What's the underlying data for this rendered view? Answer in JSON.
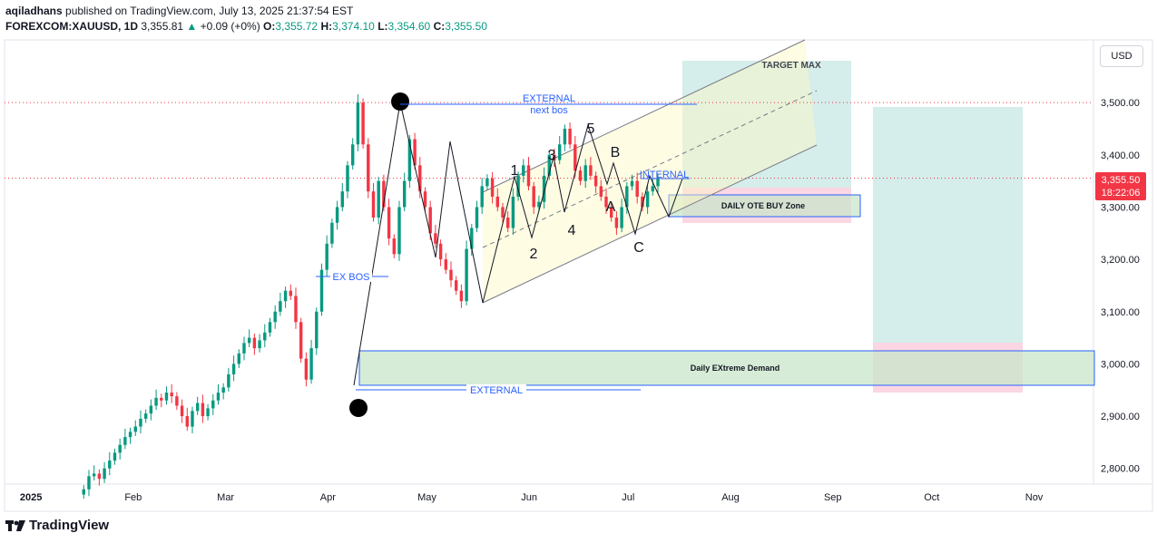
{
  "header": {
    "line1_user": "aqiladhans",
    "line1_rest": " published on TradingView.com, July 13, 2025 21:37:54 EST",
    "symbol": "FOREXCOM:XAUUSD, 1D",
    "price": "3,355.81",
    "change": "+0.09 (+0%)",
    "o_label": "O:",
    "o_value": "3,355.72",
    "h_label": "H:",
    "h_value": "3,374.10",
    "l_label": "L:",
    "l_value": "3,354.60",
    "c_label": "C:",
    "c_value": "3,355.50"
  },
  "currency_button": "USD",
  "price_badge": {
    "value": "3,355.50",
    "countdown": "18:22:06"
  },
  "footer": {
    "brand": "TradingView"
  },
  "colors": {
    "up": "#089981",
    "down": "#f23645",
    "badge": "#f23645",
    "blue": "#2962ff"
  },
  "chart_data": {
    "type": "candlestick",
    "title": "",
    "y_ticks": [
      "3,500.00",
      "3,400.00",
      "3,300.00",
      "3,200.00",
      "3,100.00",
      "3,000.00",
      "2,900.00",
      "2,800.00"
    ],
    "y_tick_values": [
      3500,
      3400,
      3300,
      3200,
      3100,
      3000,
      2900,
      2800
    ],
    "ylim": [
      2770,
      3620
    ],
    "x_ticks": [
      {
        "label": "2025",
        "day": 0
      },
      {
        "label": "Feb",
        "day": 31
      },
      {
        "label": "Mar",
        "day": 59
      },
      {
        "label": "Apr",
        "day": 90
      },
      {
        "label": "May",
        "day": 120
      },
      {
        "label": "Jun",
        "day": 151
      },
      {
        "label": "Jul",
        "day": 181
      },
      {
        "label": "Aug",
        "day": 212
      },
      {
        "label": "Sep",
        "day": 243
      },
      {
        "label": "Oct",
        "day": 273
      },
      {
        "label": "Nov",
        "day": 304
      }
    ],
    "xlim_days": [
      -8,
      322
    ],
    "closes": [
      2760,
      2785,
      2790,
      2780,
      2800,
      2815,
      2830,
      2845,
      2860,
      2870,
      2880,
      2895,
      2905,
      2920,
      2935,
      2930,
      2945,
      2938,
      2920,
      2900,
      2880,
      2910,
      2925,
      2900,
      2915,
      2930,
      2945,
      2955,
      2980,
      3000,
      3020,
      3040,
      3050,
      3030,
      3045,
      3060,
      3080,
      3100,
      3120,
      3140,
      3130,
      3080,
      3010,
      2970,
      3030,
      3100,
      3180,
      3230,
      3270,
      3300,
      3330,
      3380,
      3420,
      3500,
      3420,
      3330,
      3280,
      3350,
      3300,
      3240,
      3210,
      3300,
      3350,
      3430,
      3380,
      3330,
      3300,
      3250,
      3230,
      3200,
      3180,
      3160,
      3140,
      3120,
      3220,
      3260,
      3300,
      3340,
      3355,
      3320,
      3300,
      3280,
      3260,
      3320,
      3360,
      3380,
      3340,
      3300,
      3310,
      3360,
      3400,
      3390,
      3420,
      3450,
      3420,
      3370,
      3350,
      3380,
      3360,
      3340,
      3320,
      3300,
      3280,
      3260,
      3300,
      3340,
      3350,
      3320,
      3300,
      3330,
      3340,
      3356
    ],
    "levels": [
      {
        "name": "external-high",
        "price": 3500
      },
      {
        "name": "current-price",
        "price": 3355.5
      },
      {
        "name": "external-low",
        "price": 2946
      }
    ],
    "annotations": [
      {
        "text": "EXTERNAL"
      },
      {
        "text": "next bos"
      },
      {
        "text": "EX BOS"
      },
      {
        "text": "EXTERNAL"
      },
      {
        "text": "INTERNAL"
      },
      {
        "text": "TARGET MAX"
      },
      {
        "text": "DAILY OTE BUY Zone"
      },
      {
        "text": "Daily EXtreme Demand"
      },
      {
        "text": "1"
      },
      {
        "text": "2"
      },
      {
        "text": "3"
      },
      {
        "text": "4"
      },
      {
        "text": "5"
      },
      {
        "text": "A"
      },
      {
        "text": "B"
      },
      {
        "text": "C"
      }
    ]
  }
}
